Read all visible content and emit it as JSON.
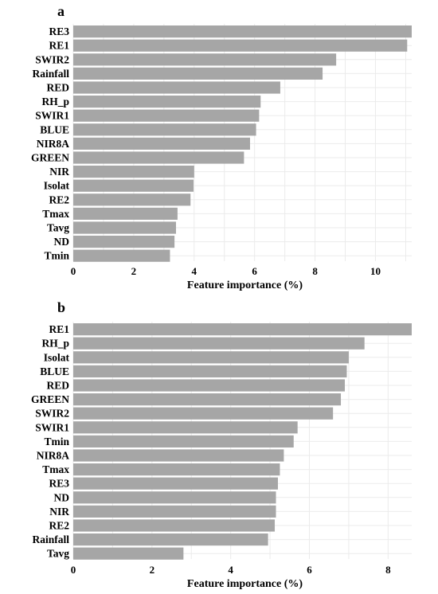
{
  "chart_data": [
    {
      "type": "bar",
      "orientation": "horizontal",
      "panel_label": "a",
      "categories": [
        "RE3",
        "RE1",
        "SWIR2",
        "Rainfall",
        "RED",
        "RH_p",
        "SWIR1",
        "BLUE",
        "NIR8A",
        "GREEN",
        "NIR",
        "Isolat",
        "RE2",
        "Tmax",
        "Tavg",
        "ND",
        "Tmin"
      ],
      "values": [
        11.2,
        11.05,
        8.7,
        8.25,
        6.85,
        6.2,
        6.15,
        6.05,
        5.85,
        5.65,
        4.0,
        3.98,
        3.88,
        3.45,
        3.4,
        3.35,
        3.2
      ],
      "xlabel": "Feature importance (%)",
      "ylabel": "",
      "xlim": [
        0,
        11.2
      ],
      "xticks": [
        0,
        2,
        4,
        6,
        8,
        10
      ],
      "grid": true,
      "bar_color": "#a6a6a6"
    },
    {
      "type": "bar",
      "orientation": "horizontal",
      "panel_label": "b",
      "categories": [
        "RE1",
        "RH_p",
        "Isolat",
        "BLUE",
        "RED",
        "GREEN",
        "SWIR2",
        "SWIR1",
        "Tmin",
        "NIR8A",
        "Tmax",
        "RE3",
        "ND",
        "NIR",
        "RE2",
        "Rainfall",
        "Tavg"
      ],
      "values": [
        8.6,
        7.4,
        7.0,
        6.95,
        6.9,
        6.8,
        6.6,
        5.7,
        5.6,
        5.35,
        5.25,
        5.2,
        5.15,
        5.15,
        5.12,
        4.95,
        2.8
      ],
      "xlabel": "Feature importance (%)",
      "ylabel": "",
      "xlim": [
        0,
        8.6
      ],
      "xticks": [
        0,
        2,
        4,
        6,
        8
      ],
      "grid": true,
      "bar_color": "#a6a6a6"
    }
  ]
}
